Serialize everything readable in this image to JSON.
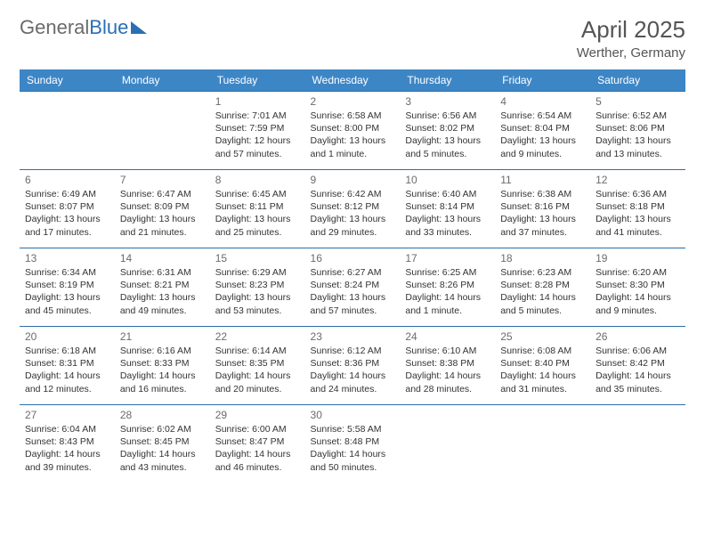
{
  "logo": {
    "text_gray": "General",
    "text_blue": "Blue"
  },
  "title": "April 2025",
  "location": "Werther, Germany",
  "colors": {
    "header_bg": "#3d86c6",
    "header_text": "#ffffff",
    "row_border": "#2f6da8",
    "body_text": "#333333",
    "muted_text": "#6b6b6b",
    "logo_gray": "#6b6b6b",
    "logo_blue": "#2a6fb5",
    "background": "#ffffff"
  },
  "day_headers": [
    "Sunday",
    "Monday",
    "Tuesday",
    "Wednesday",
    "Thursday",
    "Friday",
    "Saturday"
  ],
  "weeks": [
    [
      null,
      null,
      {
        "n": 1,
        "sunrise": "7:01 AM",
        "sunset": "7:59 PM",
        "daylight": "12 hours and 57 minutes."
      },
      {
        "n": 2,
        "sunrise": "6:58 AM",
        "sunset": "8:00 PM",
        "daylight": "13 hours and 1 minute."
      },
      {
        "n": 3,
        "sunrise": "6:56 AM",
        "sunset": "8:02 PM",
        "daylight": "13 hours and 5 minutes."
      },
      {
        "n": 4,
        "sunrise": "6:54 AM",
        "sunset": "8:04 PM",
        "daylight": "13 hours and 9 minutes."
      },
      {
        "n": 5,
        "sunrise": "6:52 AM",
        "sunset": "8:06 PM",
        "daylight": "13 hours and 13 minutes."
      }
    ],
    [
      {
        "n": 6,
        "sunrise": "6:49 AM",
        "sunset": "8:07 PM",
        "daylight": "13 hours and 17 minutes."
      },
      {
        "n": 7,
        "sunrise": "6:47 AM",
        "sunset": "8:09 PM",
        "daylight": "13 hours and 21 minutes."
      },
      {
        "n": 8,
        "sunrise": "6:45 AM",
        "sunset": "8:11 PM",
        "daylight": "13 hours and 25 minutes."
      },
      {
        "n": 9,
        "sunrise": "6:42 AM",
        "sunset": "8:12 PM",
        "daylight": "13 hours and 29 minutes."
      },
      {
        "n": 10,
        "sunrise": "6:40 AM",
        "sunset": "8:14 PM",
        "daylight": "13 hours and 33 minutes."
      },
      {
        "n": 11,
        "sunrise": "6:38 AM",
        "sunset": "8:16 PM",
        "daylight": "13 hours and 37 minutes."
      },
      {
        "n": 12,
        "sunrise": "6:36 AM",
        "sunset": "8:18 PM",
        "daylight": "13 hours and 41 minutes."
      }
    ],
    [
      {
        "n": 13,
        "sunrise": "6:34 AM",
        "sunset": "8:19 PM",
        "daylight": "13 hours and 45 minutes."
      },
      {
        "n": 14,
        "sunrise": "6:31 AM",
        "sunset": "8:21 PM",
        "daylight": "13 hours and 49 minutes."
      },
      {
        "n": 15,
        "sunrise": "6:29 AM",
        "sunset": "8:23 PM",
        "daylight": "13 hours and 53 minutes."
      },
      {
        "n": 16,
        "sunrise": "6:27 AM",
        "sunset": "8:24 PM",
        "daylight": "13 hours and 57 minutes."
      },
      {
        "n": 17,
        "sunrise": "6:25 AM",
        "sunset": "8:26 PM",
        "daylight": "14 hours and 1 minute."
      },
      {
        "n": 18,
        "sunrise": "6:23 AM",
        "sunset": "8:28 PM",
        "daylight": "14 hours and 5 minutes."
      },
      {
        "n": 19,
        "sunrise": "6:20 AM",
        "sunset": "8:30 PM",
        "daylight": "14 hours and 9 minutes."
      }
    ],
    [
      {
        "n": 20,
        "sunrise": "6:18 AM",
        "sunset": "8:31 PM",
        "daylight": "14 hours and 12 minutes."
      },
      {
        "n": 21,
        "sunrise": "6:16 AM",
        "sunset": "8:33 PM",
        "daylight": "14 hours and 16 minutes."
      },
      {
        "n": 22,
        "sunrise": "6:14 AM",
        "sunset": "8:35 PM",
        "daylight": "14 hours and 20 minutes."
      },
      {
        "n": 23,
        "sunrise": "6:12 AM",
        "sunset": "8:36 PM",
        "daylight": "14 hours and 24 minutes."
      },
      {
        "n": 24,
        "sunrise": "6:10 AM",
        "sunset": "8:38 PM",
        "daylight": "14 hours and 28 minutes."
      },
      {
        "n": 25,
        "sunrise": "6:08 AM",
        "sunset": "8:40 PM",
        "daylight": "14 hours and 31 minutes."
      },
      {
        "n": 26,
        "sunrise": "6:06 AM",
        "sunset": "8:42 PM",
        "daylight": "14 hours and 35 minutes."
      }
    ],
    [
      {
        "n": 27,
        "sunrise": "6:04 AM",
        "sunset": "8:43 PM",
        "daylight": "14 hours and 39 minutes."
      },
      {
        "n": 28,
        "sunrise": "6:02 AM",
        "sunset": "8:45 PM",
        "daylight": "14 hours and 43 minutes."
      },
      {
        "n": 29,
        "sunrise": "6:00 AM",
        "sunset": "8:47 PM",
        "daylight": "14 hours and 46 minutes."
      },
      {
        "n": 30,
        "sunrise": "5:58 AM",
        "sunset": "8:48 PM",
        "daylight": "14 hours and 50 minutes."
      },
      null,
      null,
      null
    ]
  ],
  "labels": {
    "sunrise": "Sunrise: ",
    "sunset": "Sunset: ",
    "daylight": "Daylight: "
  }
}
